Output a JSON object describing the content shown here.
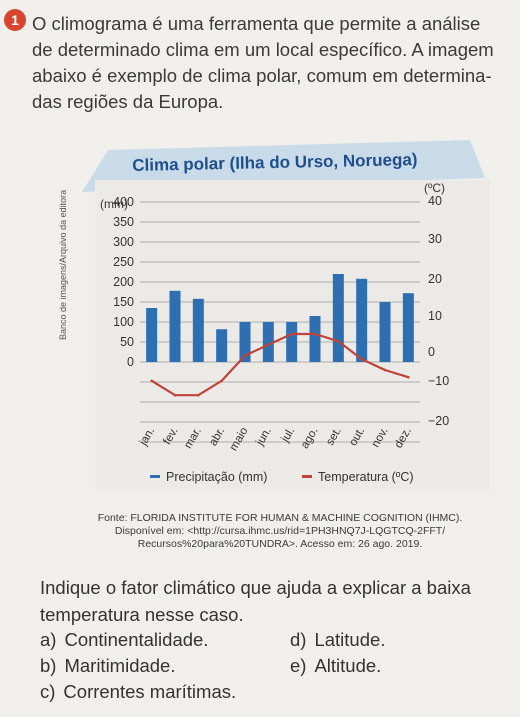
{
  "question_number": "1",
  "intro": [
    "O climograma é uma ferramenta que permite a análise",
    "de determinado clima em um local específico. A imagem",
    "abaixo é exemplo de clima polar, comum em determina-",
    "das regiões da Europa."
  ],
  "image_credit": "Banco de imagens/Arquivo da editora",
  "chart_data": {
    "type": "bar+line",
    "title": "Clima polar (Ilha do Urso, Noruega)",
    "categories": [
      "jan.",
      "fev.",
      "mar.",
      "abr.",
      "maio",
      "jun.",
      "jul.",
      "ago.",
      "set.",
      "out.",
      "nov.",
      "dez."
    ],
    "left_axis": {
      "unit": "(mm)",
      "ticks": [
        "0",
        "50",
        "100",
        "150",
        "200",
        "250",
        "300",
        "350",
        "400"
      ],
      "range": [
        0,
        400
      ]
    },
    "right_axis": {
      "unit": "(ºC)",
      "ticks": [
        "40",
        "30",
        "20",
        "10",
        "0",
        "−10",
        "−20"
      ],
      "range": [
        -20,
        40
      ]
    },
    "series": [
      {
        "name": "Precipitação (mm)",
        "kind": "bar",
        "color": "#2e6fb1",
        "values": [
          135,
          178,
          158,
          82,
          100,
          100,
          100,
          115,
          220,
          208,
          150,
          172
        ]
      },
      {
        "name": "Temperatura (ºC)",
        "kind": "line",
        "color": "#c0433c",
        "values": [
          -8,
          -12,
          -12,
          -8,
          -1,
          2,
          5,
          5,
          3,
          -2,
          -5,
          -7
        ]
      }
    ],
    "legend": "bottom",
    "grid": true
  },
  "source": [
    "Fonte: FLORIDA INSTITUTE FOR HUMAN & MACHINE COGNITION (IHMC).",
    "Disponível em: <http://cursa.ihmc.us/rid=1PH3HNQ7J-LQGTCQ-2FFT/",
    "Recursos%20para%20TUNDRA>. Acesso em: 26 ago. 2019."
  ],
  "question": [
    "Indique o fator climático que ajuda a explicar a baixa",
    "temperatura nesse caso."
  ],
  "options": [
    {
      "key": "a)",
      "text": "Continentalidade."
    },
    {
      "key": "b)",
      "text": "Maritimidade."
    },
    {
      "key": "c)",
      "text": "Correntes marítimas."
    },
    {
      "key": "d)",
      "text": "Latitude."
    },
    {
      "key": "e)",
      "text": "Altitude."
    }
  ],
  "colors": {
    "banner": "#c9dbe9",
    "banner_text": "#1f4f8a",
    "bar": "#2e6fb1",
    "line": "#c0433c",
    "badge": "#d8442e"
  }
}
